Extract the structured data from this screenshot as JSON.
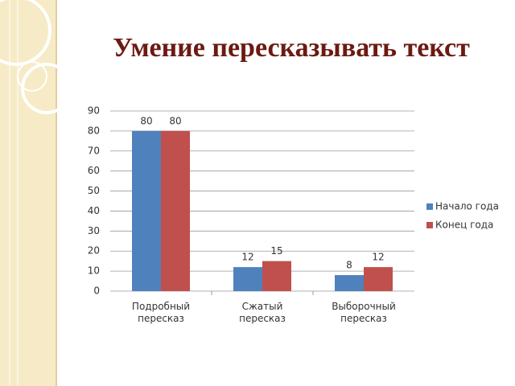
{
  "chart_data": {
    "type": "bar",
    "title": "Умение пересказывать текст",
    "categories": [
      "Подробный пересказ",
      "Сжатый пересказ",
      "Выборочный пересказ"
    ],
    "series": [
      {
        "name": "Начало года",
        "color": "#4f81bd",
        "values": [
          80,
          12,
          8
        ]
      },
      {
        "name": "Конец года",
        "color": "#c0504d",
        "values": [
          80,
          15,
          12
        ]
      }
    ],
    "ylim": [
      0,
      90
    ],
    "yticks": [
      0,
      10,
      20,
      30,
      40,
      50,
      60,
      70,
      80,
      90
    ],
    "grid": true,
    "legend": "right"
  }
}
